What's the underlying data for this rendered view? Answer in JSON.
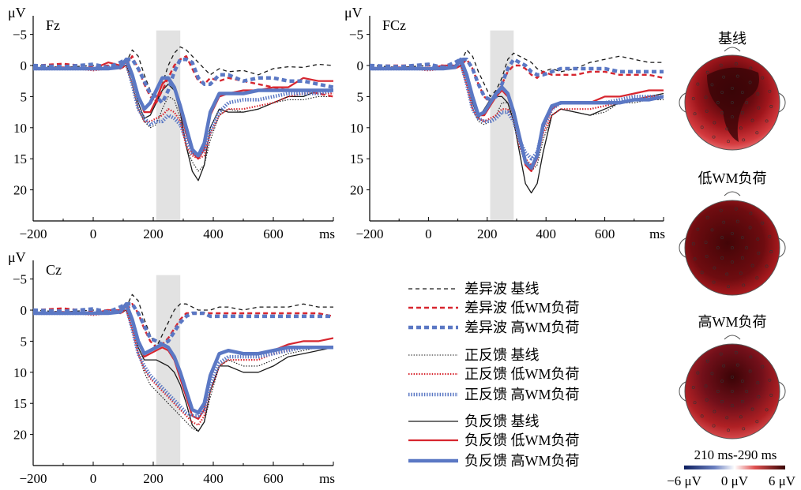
{
  "chart_data": [
    {
      "type": "line",
      "title": "Fz",
      "ylabel": "μV",
      "xunit": "ms",
      "xlim": [
        -200,
        800
      ],
      "ylim": [
        25,
        -8
      ],
      "xticks": [
        -200,
        0,
        200,
        400,
        600
      ],
      "yticks": [
        -5,
        0,
        5,
        10,
        15,
        20
      ],
      "highlight_window": [
        210,
        290
      ],
      "x": [
        -200,
        -100,
        0,
        50,
        90,
        110,
        130,
        150,
        170,
        190,
        210,
        230,
        250,
        270,
        290,
        310,
        330,
        350,
        370,
        390,
        420,
        450,
        500,
        550,
        600,
        650,
        700,
        750,
        800
      ],
      "series": [
        {
          "name": "差异波 基线",
          "values": [
            0,
            0.3,
            0,
            0.2,
            0,
            -0.5,
            -2.5,
            -1.5,
            1.5,
            4,
            6,
            3,
            0,
            -2,
            -3,
            -2.5,
            -1.5,
            -0.5,
            0.5,
            1.5,
            0.5,
            1,
            0.8,
            1.5,
            0.5,
            0.2,
            0.3,
            -0.2,
            0
          ]
        },
        {
          "name": "差异波 低WM负荷",
          "values": [
            0,
            -0.3,
            0.2,
            0,
            0.5,
            0,
            -1.5,
            0.5,
            3,
            5,
            6,
            4,
            2,
            0,
            -1,
            -1.5,
            0.5,
            2.5,
            3,
            2,
            2.5,
            2,
            2.5,
            3,
            3.5,
            4,
            4,
            4.5,
            5
          ]
        },
        {
          "name": "差异波 高WM负荷",
          "values": [
            0,
            0.2,
            -0.2,
            0.3,
            -0.5,
            -1,
            -1,
            0.5,
            2.5,
            4.5,
            5,
            6,
            4,
            1,
            -1,
            -1,
            -0.5,
            2,
            3,
            3,
            1.5,
            1.5,
            2.5,
            2,
            2,
            2.5,
            2.5,
            3,
            3.5
          ]
        },
        {
          "name": "正反馈 基线",
          "values": [
            0.5,
            0.5,
            0.5,
            0.3,
            0.5,
            0,
            3,
            7,
            9,
            10,
            9.5,
            7,
            5,
            5.5,
            8.5,
            13,
            15.5,
            17,
            16,
            12,
            8,
            7,
            7.5,
            7,
            6,
            5.5,
            5.5,
            5,
            5
          ]
        },
        {
          "name": "正反馈 低WM负荷",
          "values": [
            0.5,
            0.3,
            0.8,
            0.5,
            0,
            0.2,
            3,
            7,
            9,
            9,
            8.5,
            8,
            7,
            7.5,
            9,
            13,
            14.5,
            15,
            14.5,
            11,
            8,
            7,
            7,
            6.5,
            6,
            5,
            4.5,
            4.5,
            4.5
          ]
        },
        {
          "name": "正反馈 高WM负荷",
          "values": [
            0.5,
            0.5,
            0.5,
            0.3,
            0.2,
            -0.5,
            3,
            7,
            8.5,
            9.5,
            9,
            9,
            8,
            8.5,
            9.5,
            12,
            14,
            14.5,
            13.5,
            10.5,
            7.5,
            6,
            5.5,
            5.5,
            5,
            4.5,
            4.5,
            4.5,
            4
          ]
        },
        {
          "name": "负反馈 基线",
          "values": [
            0.5,
            0.5,
            0.5,
            0.3,
            0.3,
            0,
            2,
            6,
            8.5,
            8,
            6,
            4,
            3,
            4,
            7.5,
            13,
            17,
            18.5,
            16,
            10,
            7,
            7.5,
            7.5,
            7,
            6,
            5,
            5,
            4,
            4
          ]
        },
        {
          "name": "负反馈 低WM负荷",
          "values": [
            0.5,
            0.3,
            0.5,
            -0.5,
            0,
            -0.5,
            1.5,
            5,
            7.5,
            7.5,
            5.5,
            3,
            2,
            3.5,
            7,
            11,
            14,
            15,
            13.5,
            8,
            5,
            4.5,
            4,
            4,
            3.5,
            3.5,
            2,
            2.5,
            2.5
          ]
        },
        {
          "name": "负反馈 高WM负荷",
          "values": [
            0.5,
            0.5,
            0.5,
            0.5,
            0.3,
            -1,
            1.5,
            5,
            7,
            6,
            4,
            2,
            2,
            3.5,
            6.5,
            10,
            13.5,
            14.5,
            12.5,
            7.5,
            4.5,
            4.5,
            4.5,
            4,
            4,
            4,
            4,
            4,
            4
          ]
        }
      ]
    },
    {
      "type": "line",
      "title": "FCz",
      "ylabel": "μV",
      "xunit": "ms",
      "xlim": [
        -200,
        800
      ],
      "ylim": [
        25,
        -8
      ],
      "xticks": [
        -200,
        0,
        200,
        400,
        600
      ],
      "yticks": [
        -5,
        0,
        5,
        10,
        15,
        20
      ],
      "highlight_window": [
        210,
        290
      ],
      "x": [
        -200,
        -100,
        0,
        50,
        90,
        110,
        130,
        150,
        170,
        190,
        210,
        230,
        250,
        270,
        290,
        310,
        330,
        350,
        370,
        390,
        420,
        450,
        500,
        550,
        600,
        650,
        700,
        750,
        800
      ],
      "series": [
        {
          "name": "差异波 基线",
          "values": [
            0,
            0.3,
            0,
            0.2,
            0,
            -0.5,
            -2.5,
            -1.5,
            1,
            3,
            5,
            4,
            2,
            -1,
            -2,
            -1.5,
            -1,
            -0.5,
            0.5,
            1,
            0.5,
            1,
            0.5,
            -0.5,
            -1,
            -1.5,
            -1,
            -0.5,
            -0.5
          ]
        },
        {
          "name": "差异波 低WM负荷",
          "values": [
            0,
            0,
            0,
            0,
            0.5,
            0,
            -1,
            0.5,
            3,
            5,
            6,
            5,
            3,
            1,
            0,
            0,
            0.5,
            1.5,
            2,
            1,
            1.5,
            1.5,
            1.5,
            1,
            1,
            1.5,
            1.5,
            1.5,
            2
          ]
        },
        {
          "name": "差异波 高WM负荷",
          "values": [
            0,
            0.2,
            -0.2,
            0.3,
            -0.5,
            -1,
            -1,
            0.5,
            3,
            5,
            5.5,
            5,
            3,
            0.5,
            -1,
            -0.5,
            0,
            1,
            1.5,
            1.5,
            1,
            0.5,
            0.5,
            0.5,
            0.5,
            1,
            1,
            1,
            1
          ]
        },
        {
          "name": "正反馈 基线",
          "values": [
            0.5,
            0.5,
            0.5,
            0.3,
            0.5,
            0,
            3,
            7,
            9,
            9.5,
            9,
            8,
            6,
            6,
            8.5,
            13,
            16,
            17,
            16,
            12,
            8,
            7,
            7.5,
            8,
            7.5,
            6,
            6,
            5.5,
            5.5
          ]
        },
        {
          "name": "正反馈 低WM负荷",
          "values": [
            0.5,
            0.3,
            0.8,
            0.5,
            0,
            0,
            3,
            7,
            8.5,
            9,
            8.5,
            8,
            7,
            7,
            9,
            13,
            15,
            16,
            15,
            11,
            8,
            7,
            7,
            7,
            6.5,
            6,
            5.5,
            5,
            5
          ]
        },
        {
          "name": "正反馈 高WM负荷",
          "values": [
            0.5,
            0.5,
            0.5,
            0.3,
            0.2,
            -0.5,
            3,
            7,
            8.5,
            9,
            9,
            8.5,
            7.5,
            7.5,
            9,
            12,
            14,
            15,
            14,
            10,
            7,
            6,
            6,
            6,
            6,
            5.5,
            5,
            5,
            5
          ]
        },
        {
          "name": "负反馈 基线",
          "values": [
            0.5,
            0.5,
            0.5,
            0.3,
            0.3,
            0,
            2,
            6,
            8.5,
            7,
            5.5,
            5,
            5,
            6,
            9,
            14,
            19,
            20.5,
            19,
            14,
            8,
            7,
            7.5,
            8,
            7,
            6,
            5.5,
            5,
            4.5
          ]
        },
        {
          "name": "负反馈 低WM负荷",
          "values": [
            0.5,
            0.3,
            0.5,
            0,
            0,
            -0.5,
            1.5,
            5,
            8,
            8,
            6.5,
            5,
            4,
            5,
            8,
            12,
            16,
            17,
            15,
            10,
            7,
            6,
            6,
            6,
            5,
            5,
            4.5,
            4,
            4
          ]
        },
        {
          "name": "负反馈 高WM负荷",
          "values": [
            0.5,
            0.5,
            0.5,
            0.5,
            0.3,
            -1,
            1.5,
            5,
            8,
            7.5,
            6,
            4.5,
            3.5,
            4.5,
            7.5,
            11.5,
            15.5,
            16.5,
            14.5,
            9.5,
            6.5,
            6,
            6,
            6,
            6,
            6,
            5.5,
            5.5,
            5
          ]
        }
      ]
    },
    {
      "type": "line",
      "title": "Cz",
      "ylabel": "μV",
      "xunit": "ms",
      "xlim": [
        -200,
        800
      ],
      "ylim": [
        25,
        -8
      ],
      "xticks": [
        -200,
        0,
        200,
        400,
        600
      ],
      "yticks": [
        -5,
        0,
        5,
        10,
        15,
        20
      ],
      "highlight_window": [
        210,
        290
      ],
      "x": [
        -200,
        -100,
        0,
        50,
        90,
        110,
        130,
        150,
        170,
        190,
        210,
        230,
        250,
        270,
        290,
        310,
        330,
        350,
        370,
        390,
        420,
        450,
        500,
        550,
        600,
        650,
        700,
        750,
        800
      ],
      "series": [
        {
          "name": "差异波 基线",
          "values": [
            0,
            0.3,
            0,
            0.2,
            0,
            -0.5,
            -2.5,
            -1.5,
            1.5,
            4,
            6,
            4,
            2,
            0,
            -1,
            -1,
            -0.5,
            0,
            0,
            0,
            -0.5,
            -0.5,
            0,
            -0.5,
            -0.5,
            -0.5,
            -1,
            -0.5,
            -0.5
          ]
        },
        {
          "name": "差异波 低WM负荷",
          "values": [
            0,
            -0.3,
            0.2,
            0,
            0.5,
            0,
            -1,
            0.5,
            3,
            5,
            6,
            5.5,
            4.5,
            3,
            1.5,
            0.5,
            0.5,
            0.5,
            0.5,
            0.5,
            0.5,
            0.5,
            0.5,
            0.5,
            0.5,
            0.5,
            0.5,
            0.5,
            1
          ]
        },
        {
          "name": "差异波 高WM负荷",
          "values": [
            0,
            0.2,
            -0.2,
            0.3,
            -0.5,
            -1,
            -1,
            0.5,
            2.5,
            4.5,
            5,
            5.5,
            5,
            3.5,
            2,
            1,
            0.5,
            0.5,
            0.5,
            1,
            1,
            1,
            1,
            1,
            1,
            1,
            1,
            1,
            1
          ]
        },
        {
          "name": "正反馈 基线",
          "values": [
            0.5,
            0.5,
            0.5,
            0.3,
            0.5,
            0,
            3,
            7,
            10,
            12,
            13,
            14,
            15,
            16,
            17,
            18,
            19,
            19.5,
            18,
            14,
            9,
            8,
            9,
            9,
            8,
            7,
            6.5,
            6,
            6
          ]
        },
        {
          "name": "正反馈 低WM负荷",
          "values": [
            0.5,
            0.3,
            0.8,
            0.5,
            0,
            0,
            3,
            7,
            9.5,
            11,
            12,
            13,
            14,
            15,
            16,
            17,
            18,
            18.5,
            17,
            13,
            9,
            8,
            8,
            8,
            7,
            6.5,
            6,
            6,
            6
          ]
        },
        {
          "name": "正反馈 高WM负荷",
          "values": [
            0.5,
            0.5,
            0.5,
            0.3,
            0.2,
            -0.5,
            3,
            7,
            9,
            10.5,
            11.5,
            12.5,
            13.5,
            14.5,
            15.5,
            16.5,
            17,
            17,
            16,
            12,
            8.5,
            7.5,
            7.5,
            7.5,
            7,
            6.5,
            6,
            6,
            6
          ]
        },
        {
          "name": "负反馈 基线",
          "values": [
            0.5,
            0.5,
            0.5,
            0.3,
            0.3,
            0,
            2,
            6,
            8,
            8,
            8,
            8.5,
            9,
            10,
            12,
            15,
            18.5,
            19.5,
            18,
            13,
            9,
            9,
            10,
            10,
            9,
            7.5,
            7,
            6.5,
            6
          ]
        },
        {
          "name": "负反馈 低WM负荷",
          "values": [
            0.5,
            0.3,
            0.5,
            0,
            0,
            -0.5,
            1.5,
            5,
            7.5,
            7,
            6.5,
            6,
            6.5,
            8,
            11,
            14,
            17,
            17.5,
            16,
            11,
            7,
            6.5,
            7,
            7,
            6.5,
            5.5,
            5,
            5,
            4.5
          ]
        },
        {
          "name": "负反馈 高WM负荷",
          "values": [
            0.5,
            0.5,
            0.5,
            0.5,
            0.3,
            -1,
            1.5,
            5,
            7,
            6.5,
            6,
            5.5,
            6,
            7.5,
            10,
            13,
            16,
            16.5,
            15,
            10.5,
            7,
            6.5,
            7,
            7,
            6.5,
            6,
            6,
            6,
            6
          ]
        }
      ]
    }
  ],
  "legend": [
    {
      "label": "差异波 基线",
      "color": "#1a1a1a",
      "width": 1.3,
      "dash": "5,4"
    },
    {
      "label": "差异波 低WM负荷",
      "color": "#d7262f",
      "width": 2.4,
      "dash": "6,4"
    },
    {
      "label": "差异波 高WM负荷",
      "color": "#5b78c4",
      "width": 4.5,
      "dash": "6,4"
    },
    {
      "label": "正反馈 基线",
      "color": "#1a1a1a",
      "width": 1.1,
      "dash": "1.5,1.8"
    },
    {
      "label": "正反馈 低WM负荷",
      "color": "#d7262f",
      "width": 2.2,
      "dash": "1.5,1.8"
    },
    {
      "label": "正反馈 高WM负荷",
      "color": "#5b78c4",
      "width": 4.5,
      "dash": "1.5,1.8"
    },
    {
      "label": "负反馈 基线",
      "color": "#1a1a1a",
      "width": 1.3,
      "dash": ""
    },
    {
      "label": "负反馈 低WM负荷",
      "color": "#d7262f",
      "width": 2.2,
      "dash": ""
    },
    {
      "label": "负反馈 高WM负荷",
      "color": "#5b78c4",
      "width": 4.5,
      "dash": ""
    }
  ],
  "topomaps": {
    "titles": [
      "基线",
      "低WM负荷",
      "高WM负荷"
    ],
    "time_window": "210 ms-290 ms",
    "colorbar": {
      "min_label": "−6 μV",
      "mid_label": "0 μV",
      "max_label": "6 μV",
      "colors": [
        "#0b1d5e",
        "#ffffff",
        "#c01818",
        "#3a0505"
      ]
    }
  }
}
